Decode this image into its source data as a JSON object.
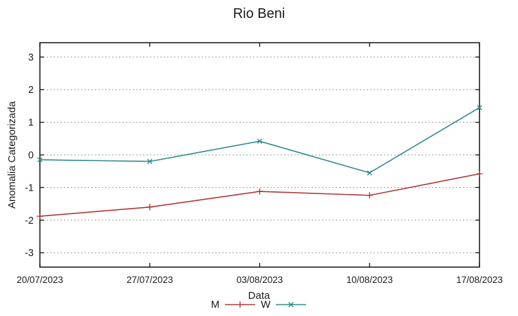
{
  "title": "Rio Beni",
  "colors": {
    "m_series": "#b03636",
    "w_series": "#2e8b8b",
    "grid": "#999999",
    "border": "#111111",
    "text": "#1a1a1a"
  },
  "chart_data": {
    "type": "line",
    "title": "Rio Beni",
    "xlabel": "Data",
    "ylabel": "Anomalia Categorizada",
    "categories": [
      "20/07/2023",
      "27/07/2023",
      "03/08/2023",
      "10/08/2023",
      "17/08/2023"
    ],
    "series": [
      {
        "name": "M",
        "color": "#b03636",
        "marker": "plus",
        "values": [
          -1.88,
          -1.6,
          -1.12,
          -1.24,
          -0.58
        ]
      },
      {
        "name": "W",
        "color": "#2e8b8b",
        "marker": "cross",
        "values": [
          -0.15,
          -0.2,
          0.42,
          -0.55,
          1.45
        ]
      }
    ],
    "ylim": [
      -3.44,
      3.44
    ],
    "yticks": [
      -3,
      -2,
      -1,
      0,
      1,
      2,
      3
    ],
    "grid": true,
    "grid_style": "dotted",
    "legend_position": "bottom-center"
  },
  "legend": {
    "m_label": "M",
    "w_label": "W"
  }
}
